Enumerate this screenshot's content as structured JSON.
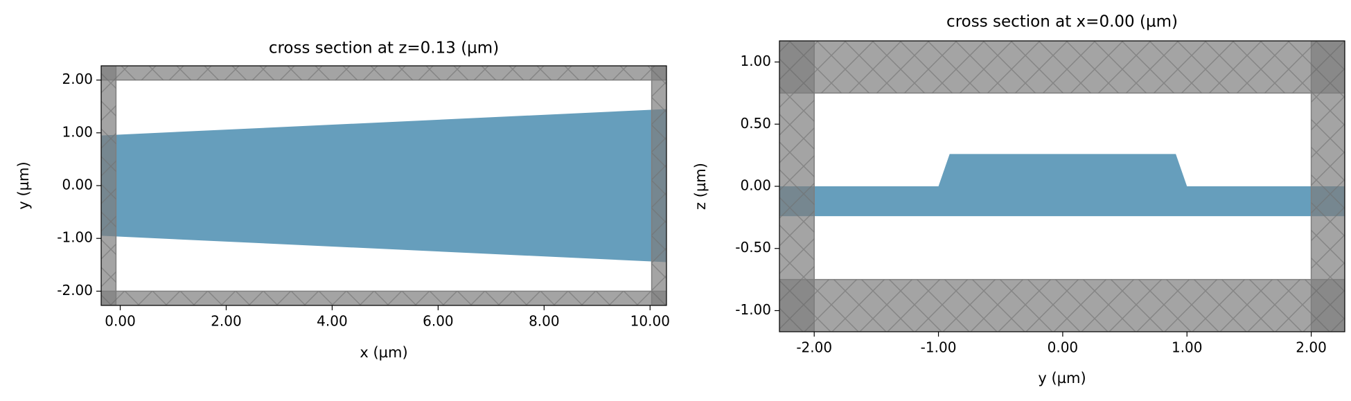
{
  "chart_data": [
    {
      "type": "polygon",
      "title": "cross section at z=0.13 (µm)",
      "xlabel": "x (µm)",
      "ylabel": "y (µm)",
      "xlim": [
        -0.36,
        10.31
      ],
      "ylim": [
        -2.27,
        2.27
      ],
      "xticks": [
        {
          "value": 0,
          "label": "0.00"
        },
        {
          "value": 2,
          "label": "2.00"
        },
        {
          "value": 4,
          "label": "4.00"
        },
        {
          "value": 6,
          "label": "6.00"
        },
        {
          "value": 8,
          "label": "8.00"
        },
        {
          "value": 10,
          "label": "10.00"
        }
      ],
      "yticks": [
        {
          "value": -2,
          "label": "-2.00"
        },
        {
          "value": -1,
          "label": "-1.00"
        },
        {
          "value": 0,
          "label": "0.00"
        },
        {
          "value": 1,
          "label": "1.00"
        },
        {
          "value": 2,
          "label": "2.00"
        }
      ],
      "polygons": [
        {
          "color": "#669ebc",
          "x": [
            -0.36,
            10.31,
            10.31,
            -0.36
          ],
          "y": [
            0.95,
            1.45,
            -1.45,
            -0.95
          ]
        }
      ],
      "boundary": {
        "color": "#7e7e7e",
        "x": [
          -0.08,
          10.03
        ],
        "y": [
          -2,
          2
        ]
      }
    },
    {
      "type": "polygon",
      "title": "cross section at x=0.00 (µm)",
      "xlabel": "y (µm)",
      "ylabel": "z (µm)",
      "xlim": [
        -2.28,
        2.27
      ],
      "ylim": [
        -1.17,
        1.17
      ],
      "xticks": [
        {
          "value": -2,
          "label": "-2.00"
        },
        {
          "value": -1,
          "label": "-1.00"
        },
        {
          "value": 0,
          "label": "0.00"
        },
        {
          "value": 1,
          "label": "1.00"
        },
        {
          "value": 2,
          "label": "2.00"
        }
      ],
      "yticks": [
        {
          "value": -1,
          "label": "-1.00"
        },
        {
          "value": -0.5,
          "label": "-0.50"
        },
        {
          "value": 0,
          "label": "0.00"
        },
        {
          "value": 0.5,
          "label": "0.50"
        },
        {
          "value": 1,
          "label": "1.00"
        }
      ],
      "polygons": [
        {
          "color": "#669ebc",
          "x": [
            -2.28,
            -2.28,
            -1.0,
            -0.91,
            0.91,
            1.0,
            2.27,
            2.27
          ],
          "y": [
            -0.24,
            0,
            0,
            0.26,
            0.26,
            0,
            0,
            -0.24
          ]
        }
      ],
      "boundary": {
        "color": "#7e7e7e",
        "x": [
          -2,
          2
        ],
        "y": [
          -0.75,
          0.75
        ]
      }
    }
  ]
}
